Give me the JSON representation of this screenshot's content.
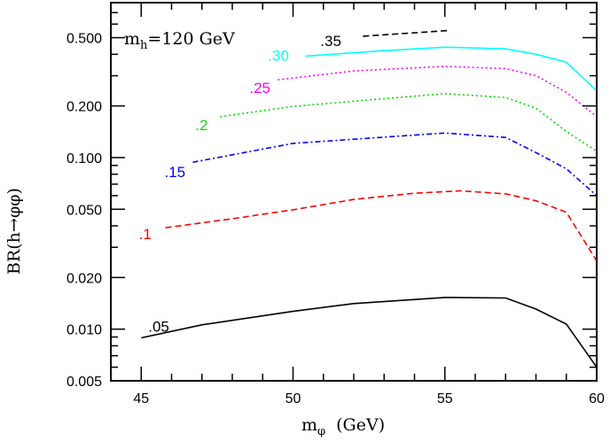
{
  "chart_data": {
    "type": "line",
    "title": "",
    "xlabel": "m_φ (GeV)",
    "xlabel_main": "m",
    "xlabel_sub": "φ",
    "xlabel_unit": "(GeV)",
    "ylabel": "BR(h→φφ)",
    "annotation_main": "m",
    "annotation_sub": "h",
    "annotation_rest": "=120 GeV",
    "xlim": [
      44,
      60
    ],
    "ylim": [
      0.005,
      0.8
    ],
    "yscale": "log",
    "grid": false,
    "x_ticks": [
      45,
      50,
      55,
      60
    ],
    "x_tick_labels": [
      "45",
      "50",
      "55",
      "60"
    ],
    "y_ticks": [
      0.5,
      0.2,
      0.1,
      0.05,
      0.02,
      0.01,
      0.005
    ],
    "y_tick_labels": [
      "0.500",
      "0.200",
      "0.100",
      "0.050",
      "0.020",
      "0.010",
      "0.005"
    ],
    "series": [
      {
        "label": ".05",
        "color": "#000000",
        "style": "solid",
        "x": [
          45,
          47,
          50,
          52,
          55,
          57,
          58,
          59,
          60
        ],
        "y": [
          0.0089,
          0.0106,
          0.0127,
          0.0141,
          0.0153,
          0.0152,
          0.0131,
          0.0107,
          0.006
        ]
      },
      {
        "label": ".1",
        "color": "#ff0000",
        "style": "dashed",
        "x": [
          45.8,
          48,
          50,
          52,
          54,
          55.5,
          57,
          58,
          59,
          60
        ],
        "y": [
          0.039,
          0.044,
          0.0496,
          0.057,
          0.062,
          0.064,
          0.0615,
          0.056,
          0.048,
          0.025
        ]
      },
      {
        "label": ".15",
        "color": "#0000ff",
        "style": "dashdot",
        "x": [
          46.7,
          50,
          55,
          57,
          58,
          59,
          60
        ],
        "y": [
          0.094,
          0.121,
          0.139,
          0.131,
          0.107,
          0.086,
          0.06
        ]
      },
      {
        "label": ".2",
        "color": "#00dd00",
        "style": "dotted",
        "x": [
          47.6,
          50,
          55,
          57,
          58,
          59,
          60
        ],
        "y": [
          0.173,
          0.199,
          0.236,
          0.224,
          0.194,
          0.142,
          0.109
        ]
      },
      {
        "label": ".25",
        "color": "#ff00ff",
        "style": "dotted",
        "x": [
          49.5,
          52,
          55,
          57,
          58,
          59,
          60
        ],
        "y": [
          0.284,
          0.32,
          0.34,
          0.33,
          0.3,
          0.24,
          0.173
        ]
      },
      {
        "label": ".30",
        "color": "#00ffff",
        "style": "solid",
        "x": [
          50.4,
          53,
          55,
          57,
          58,
          59,
          60
        ],
        "y": [
          0.39,
          0.42,
          0.44,
          0.43,
          0.4,
          0.36,
          0.245
        ]
      },
      {
        "label": ".35",
        "color": "#000000",
        "style": "dashed",
        "x": [
          52.3,
          55.1
        ],
        "y": [
          0.51,
          0.55
        ]
      }
    ]
  }
}
